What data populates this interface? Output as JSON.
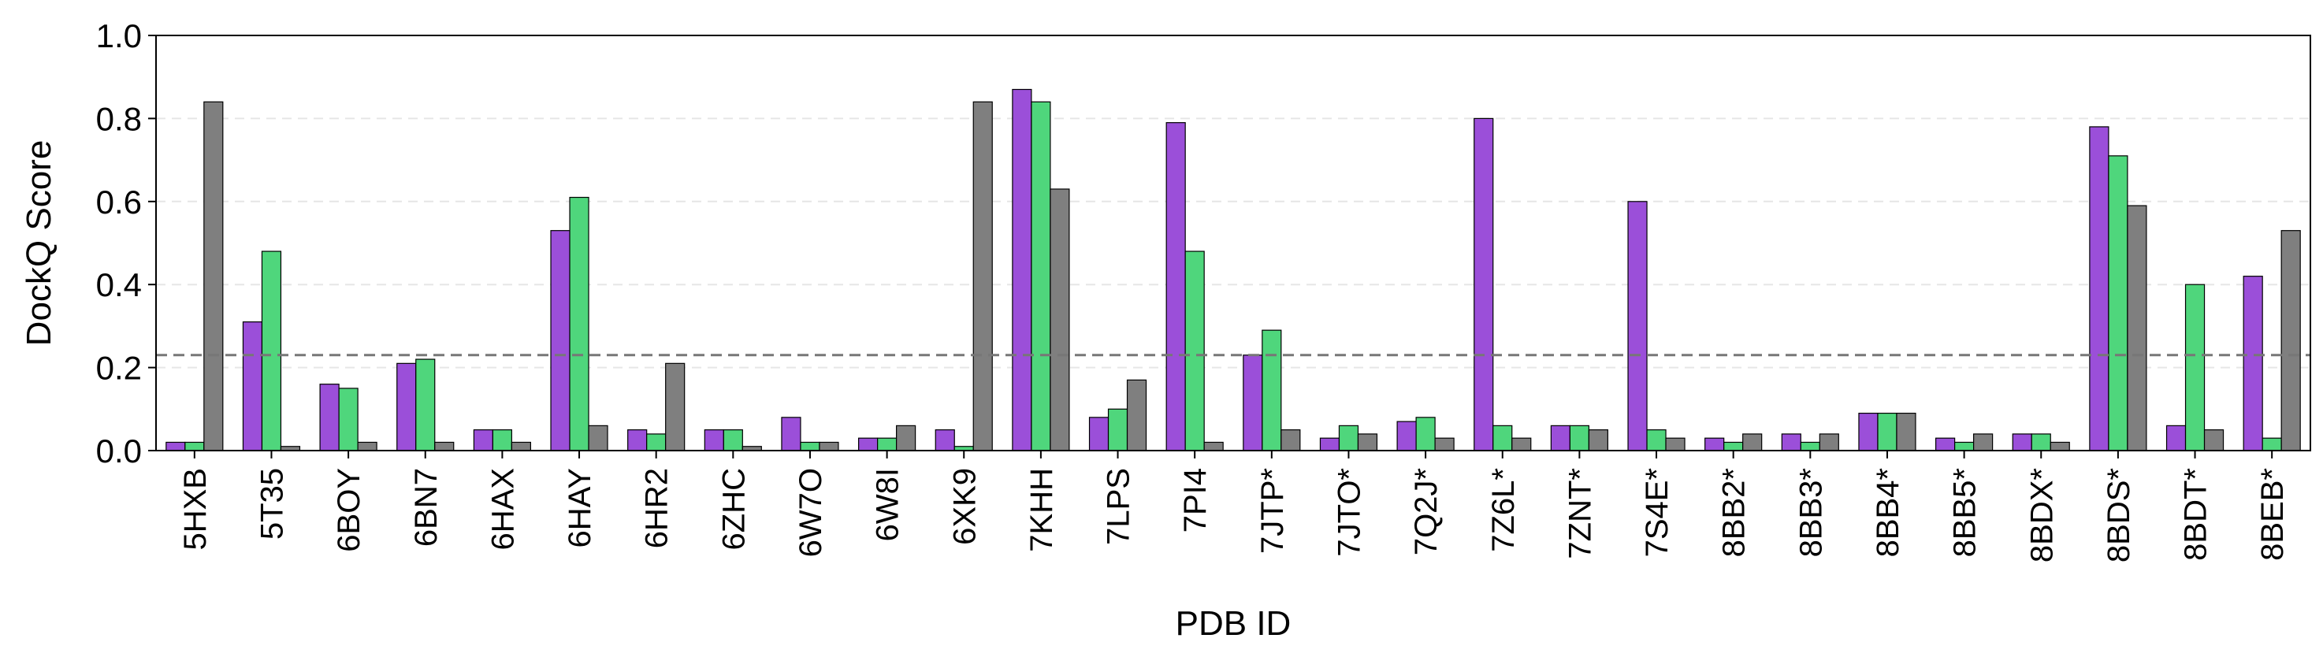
{
  "chart_data": {
    "type": "bar",
    "xlabel": "PDB ID",
    "ylabel": "DockQ Score",
    "ylim": [
      0,
      1.0
    ],
    "yticks": [
      "0.0",
      "0.2",
      "0.4",
      "0.6",
      "0.8",
      "1.0"
    ],
    "grid": "horizontal dashed",
    "threshold": 0.23,
    "categories": [
      "5HXB",
      "5T35",
      "6BOY",
      "6BN7",
      "6HAX",
      "6HAY",
      "6HR2",
      "6ZHC",
      "6W7O",
      "6W8I",
      "6XK9",
      "7KHH",
      "7LPS",
      "7PI4",
      "7JTP*",
      "7JTO*",
      "7Q2J*",
      "7Z6L*",
      "7ZNT*",
      "7S4E*",
      "8BB2*",
      "8BB3*",
      "8BB4*",
      "8BB5*",
      "8BDX*",
      "8BDS*",
      "8BDT*",
      "8BEB*"
    ],
    "series": [
      {
        "color": "#9b4fd9",
        "values": [
          0.02,
          0.31,
          0.16,
          0.21,
          0.05,
          0.53,
          0.05,
          0.05,
          0.08,
          0.03,
          0.05,
          0.87,
          0.08,
          0.79,
          0.23,
          0.03,
          0.07,
          0.8,
          0.06,
          0.6,
          0.03,
          0.04,
          0.09,
          0.03,
          0.04,
          0.78,
          0.06,
          0.42
        ]
      },
      {
        "color": "#4fd67c",
        "values": [
          0.02,
          0.48,
          0.15,
          0.22,
          0.05,
          0.61,
          0.04,
          0.05,
          0.02,
          0.03,
          0.01,
          0.84,
          0.1,
          0.48,
          0.29,
          0.06,
          0.08,
          0.06,
          0.06,
          0.05,
          0.02,
          0.02,
          0.09,
          0.02,
          0.04,
          0.71,
          0.4,
          0.03
        ]
      },
      {
        "color": "#7f7f7f",
        "values": [
          0.84,
          0.01,
          0.02,
          0.02,
          0.02,
          0.06,
          0.21,
          0.01,
          0.02,
          0.06,
          0.84,
          0.63,
          0.17,
          0.02,
          0.05,
          0.04,
          0.03,
          0.03,
          0.05,
          0.03,
          0.04,
          0.04,
          0.09,
          0.04,
          0.02,
          0.59,
          0.05,
          0.53
        ]
      }
    ]
  }
}
